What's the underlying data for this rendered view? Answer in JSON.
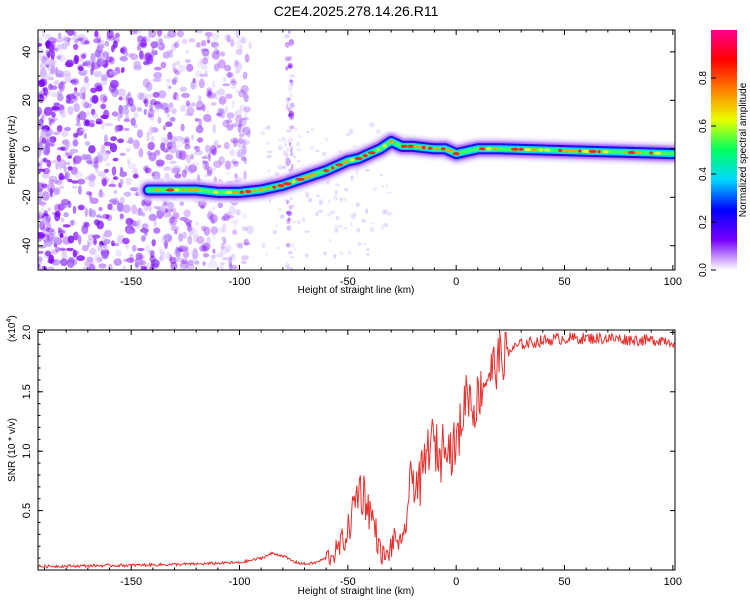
{
  "title": "C2E4.2025.278.14.26.R11",
  "chart_data": [
    {
      "type": "heatmap",
      "title": "C2E4.2025.278.14.26.R11",
      "xlabel": "Height of straight line (km)",
      "ylabel": "Frequency (Hz)",
      "xlim": [
        -193,
        101
      ],
      "ylim": [
        -50,
        49
      ],
      "xticks": [
        -150,
        -100,
        -50,
        0,
        50,
        100
      ],
      "xtick_labels": [
        "-150",
        "-100",
        "-50",
        "0",
        "50",
        "100"
      ],
      "yticks": [
        -40,
        -20,
        0,
        20,
        40
      ],
      "ytick_labels": [
        "-40",
        "-20",
        "0",
        "20",
        "40"
      ],
      "ridge": {
        "x": [
          -142,
          -135,
          -120,
          -110,
          -100,
          -90,
          -80,
          -70,
          -60,
          -50,
          -45,
          -40,
          -35,
          -30,
          -25,
          -20,
          -10,
          -5,
          0,
          5,
          10,
          20,
          40,
          60,
          80,
          100
        ],
        "y": [
          -17,
          -17,
          -17,
          -18,
          -18,
          -17,
          -15,
          -12,
          -9,
          -5,
          -4,
          -2,
          0,
          3,
          1,
          1,
          0,
          0,
          -2,
          -1,
          0,
          0,
          -0.5,
          -1,
          -1.5,
          -2
        ]
      },
      "colorbar": {
        "label": "Normalized spectral amplitude",
        "ticks": [
          0.0,
          0.2,
          0.4,
          0.6,
          0.8
        ],
        "tick_labels": [
          "0.0",
          "0.2",
          "0.4",
          "0.6",
          "0.8"
        ],
        "range": [
          0,
          1
        ],
        "colors": [
          "#ffffff",
          "#7700ff",
          "#0000ff",
          "#00d8ff",
          "#00ff60",
          "#e8ff00",
          "#ff8000",
          "#ff0000",
          "#ff0090"
        ]
      },
      "noise_region": [
        -193,
        -110
      ],
      "vertical_streaks": [
        -77
      ]
    },
    {
      "type": "line",
      "xlabel": "Height of straight line (km)",
      "ylabel": "SNR (10 * v/v)",
      "scale_label_base": "(x10",
      "scale_label_exp": "4",
      "scale_label_end": ")",
      "xlim": [
        -193,
        101
      ],
      "ylim": [
        0,
        2.02
      ],
      "xticks": [
        -150,
        -100,
        -50,
        0,
        50,
        100
      ],
      "xtick_labels": [
        "-150",
        "-100",
        "-50",
        "0",
        "50",
        "100"
      ],
      "yticks": [
        0.5,
        1.0,
        1.5,
        2.0
      ],
      "ytick_labels": [
        "0.5",
        "1.0",
        "1.5",
        "2.0"
      ],
      "color": "#e8302c",
      "series": [
        {
          "name": "SNR",
          "x": [
            -193,
            -150,
            -120,
            -105,
            -100,
            -95,
            -90,
            -85,
            -80,
            -75,
            -70,
            -65,
            -60,
            -55,
            -50,
            -47,
            -45,
            -42,
            -40,
            -38,
            -35,
            -32,
            -30,
            -27,
            -25,
            -22,
            -20,
            -17,
            -15,
            -12,
            -10,
            -7,
            -5,
            -3,
            0,
            3,
            5,
            8,
            10,
            13,
            15,
            18,
            20,
            25,
            30,
            40,
            50,
            60,
            70,
            80,
            90,
            95,
            101
          ],
          "y": [
            0.03,
            0.04,
            0.05,
            0.06,
            0.06,
            0.08,
            0.1,
            0.14,
            0.12,
            0.07,
            0.05,
            0.06,
            0.1,
            0.16,
            0.32,
            0.55,
            0.7,
            0.62,
            0.5,
            0.4,
            0.15,
            0.1,
            0.2,
            0.28,
            0.15,
            0.6,
            0.8,
            0.7,
            0.85,
            1.1,
            1.05,
            0.95,
            1.2,
            1.0,
            1.05,
            1.3,
            1.55,
            1.35,
            1.45,
            1.6,
            1.65,
            1.72,
            1.78,
            1.85,
            1.9,
            1.93,
            1.95,
            1.95,
            1.95,
            1.94,
            1.93,
            1.94,
            1.92
          ]
        }
      ]
    }
  ]
}
